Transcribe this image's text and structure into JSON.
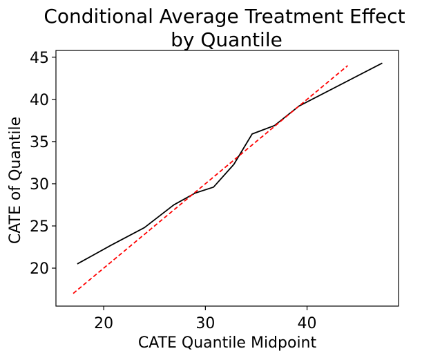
{
  "chart_data": {
    "type": "line",
    "title_lines": [
      "Conditional Average Treatment Effect",
      "by Quantile"
    ],
    "xlabel": "CATE Quantile Midpoint",
    "ylabel": "CATE of Quantile",
    "xlim": [
      15.3,
      49.0
    ],
    "ylim": [
      15.5,
      45.8
    ],
    "xticks": [
      20,
      30,
      40
    ],
    "yticks": [
      20,
      25,
      30,
      35,
      40,
      45
    ],
    "grid": false,
    "series": [
      {
        "style": "solid",
        "color": "#000000",
        "x": [
          17.4,
          20.7,
          24.0,
          26.9,
          29.0,
          30.8,
          32.8,
          34.6,
          36.8,
          39.2,
          47.4
        ],
        "y": [
          20.5,
          22.7,
          24.8,
          27.5,
          28.9,
          29.6,
          32.3,
          35.9,
          36.9,
          39.2,
          44.3
        ]
      },
      {
        "style": "dashed",
        "color": "#ff0000",
        "x": [
          17.0,
          44.0
        ],
        "y": [
          17.0,
          44.0
        ]
      }
    ]
  }
}
